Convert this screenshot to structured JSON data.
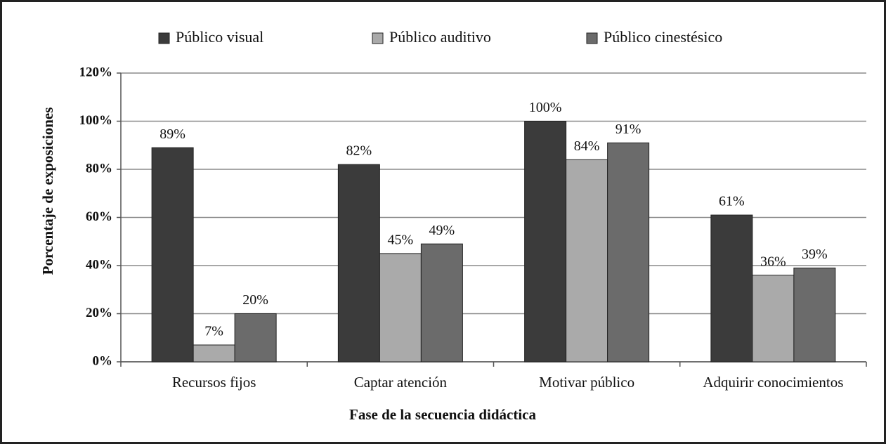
{
  "chart_data": {
    "type": "bar",
    "categories": [
      "Recursos fijos",
      "Captar atención",
      "Motivar público",
      "Adquirir conocimientos"
    ],
    "series": [
      {
        "name": "Público visual",
        "color": "#3b3b3b",
        "values": [
          89,
          82,
          100,
          61
        ],
        "value_labels": [
          "89%",
          "82%",
          "100%",
          "61%"
        ]
      },
      {
        "name": "Público auditivo",
        "color": "#aaaaaa",
        "values": [
          7,
          45,
          84,
          36
        ],
        "value_labels": [
          "7%",
          "45%",
          "84%",
          "36%"
        ]
      },
      {
        "name": "Público cinestésico",
        "color": "#6b6b6b",
        "values": [
          20,
          49,
          91,
          39
        ],
        "value_labels": [
          "20%",
          "49%",
          "91%",
          "39%"
        ]
      }
    ],
    "xlabel": "Fase de la secuencia didáctica",
    "ylabel": "Porcentaje de exposiciones",
    "ylim": [
      0,
      120
    ],
    "yticks": [
      {
        "value": 0,
        "label": "0%"
      },
      {
        "value": 20,
        "label": "20%"
      },
      {
        "value": 40,
        "label": "40%"
      },
      {
        "value": 60,
        "label": "60%"
      },
      {
        "value": 80,
        "label": "80%"
      },
      {
        "value": 100,
        "label": "100%"
      },
      {
        "value": 120,
        "label": "120%"
      }
    ],
    "grid": true,
    "legend": "top"
  }
}
